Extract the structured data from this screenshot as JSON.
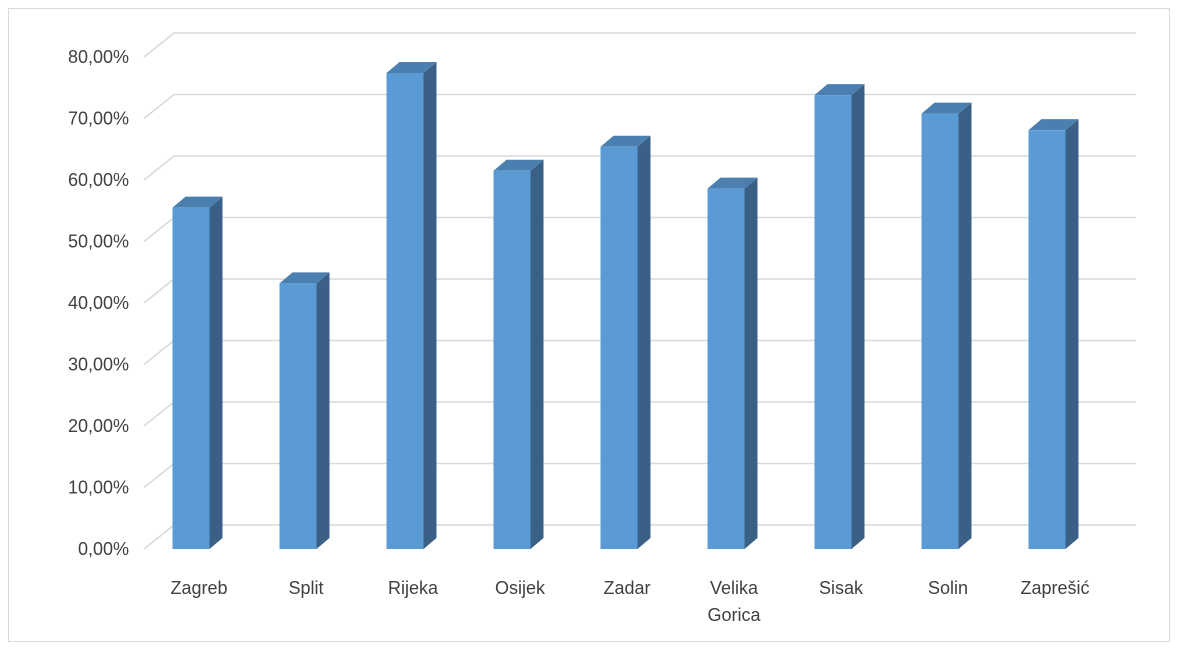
{
  "chart_data": {
    "type": "bar",
    "style": "3d-column",
    "title": "",
    "xlabel": "",
    "ylabel": "",
    "categories": [
      [
        "Zagreb"
      ],
      [
        "Split"
      ],
      [
        "Rijeka"
      ],
      [
        "Osijek"
      ],
      [
        "Zadar"
      ],
      [
        "Velika",
        "Gorica"
      ],
      [
        "Sisak"
      ],
      [
        "Solin"
      ],
      [
        "Zaprešić"
      ]
    ],
    "values": [
      55.5,
      43.2,
      77.4,
      61.5,
      65.4,
      58.6,
      73.8,
      70.8,
      68.1
    ],
    "ylim": [
      0,
      80
    ],
    "ytick_values": [
      0,
      10,
      20,
      30,
      40,
      50,
      60,
      70,
      80
    ],
    "ytick_labels": [
      "0,00%",
      "10,00%",
      "20,00%",
      "30,00%",
      "40,00%",
      "50,00%",
      "60,00%",
      "70,00%",
      "80,00%"
    ],
    "grid": true,
    "legend": "none",
    "colors": {
      "bar_front": "#5b9bd5",
      "bar_side": "#3a6185",
      "bar_top": "#4a7fb0",
      "grid": "#d9d9d9",
      "text": "#404040"
    }
  }
}
